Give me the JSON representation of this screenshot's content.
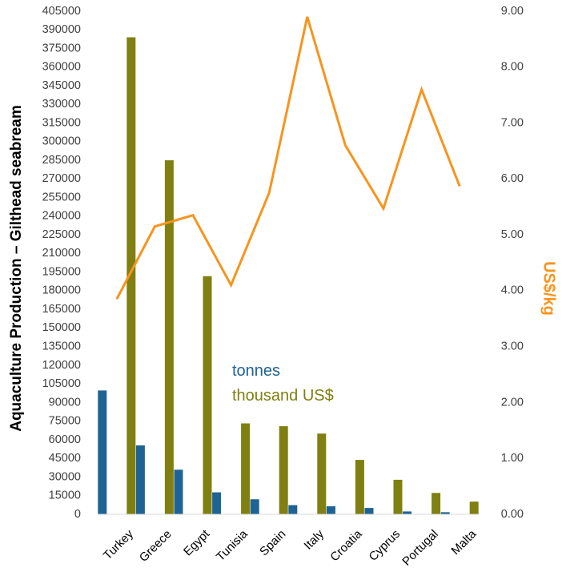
{
  "chart_data": {
    "type": "bar",
    "title": "",
    "categories": [
      "Turkey",
      "Greece",
      "Egypt",
      "Tunisia",
      "Spain",
      "Italy",
      "Croatia",
      "Cyprus",
      "Portugal",
      "Malta"
    ],
    "series": [
      {
        "name": "tonnes",
        "color": "#1F6394",
        "axis": "left",
        "type": "bar",
        "values": [
          99700,
          55500,
          35900,
          17700,
          12100,
          7400,
          6500,
          5100,
          2300,
          1700
        ]
      },
      {
        "name": "thousand US$",
        "color": "#7F7F12",
        "axis": "left",
        "type": "bar",
        "values": [
          384000,
          285000,
          191700,
          73200,
          70900,
          65000,
          43800,
          27800,
          17200,
          10200
        ]
      },
      {
        "name": "US$/kg",
        "color": "#F7941D",
        "axis": "right",
        "type": "line",
        "values": [
          3.85,
          5.15,
          5.35,
          4.1,
          5.75,
          8.9,
          6.6,
          5.47,
          7.6,
          5.87
        ]
      }
    ],
    "ylabel": "Aquaculture Production – Gilthead seabream",
    "ylim": [
      0,
      405000
    ],
    "y_ticks": [
      "0",
      "15000",
      "30000",
      "45000",
      "60000",
      "75000",
      "90000",
      "105000",
      "120000",
      "135000",
      "150000",
      "165000",
      "180000",
      "195000",
      "210000",
      "225000",
      "240000",
      "255000",
      "270000",
      "285000",
      "300000",
      "315000",
      "330000",
      "345000",
      "360000",
      "375000",
      "390000",
      "405000"
    ],
    "y2label": "US$/kg",
    "y2lim": [
      0,
      9
    ],
    "y2_ticks": [
      "0.00",
      "1.00",
      "2.00",
      "3.00",
      "4.00",
      "5.00",
      "6.00",
      "7.00",
      "8.00",
      "9.00"
    ],
    "legend": [
      {
        "label": "tonnes",
        "color": "#1F6394"
      },
      {
        "label": "thousand US$",
        "color": "#7F7F12"
      }
    ],
    "grid": false
  }
}
